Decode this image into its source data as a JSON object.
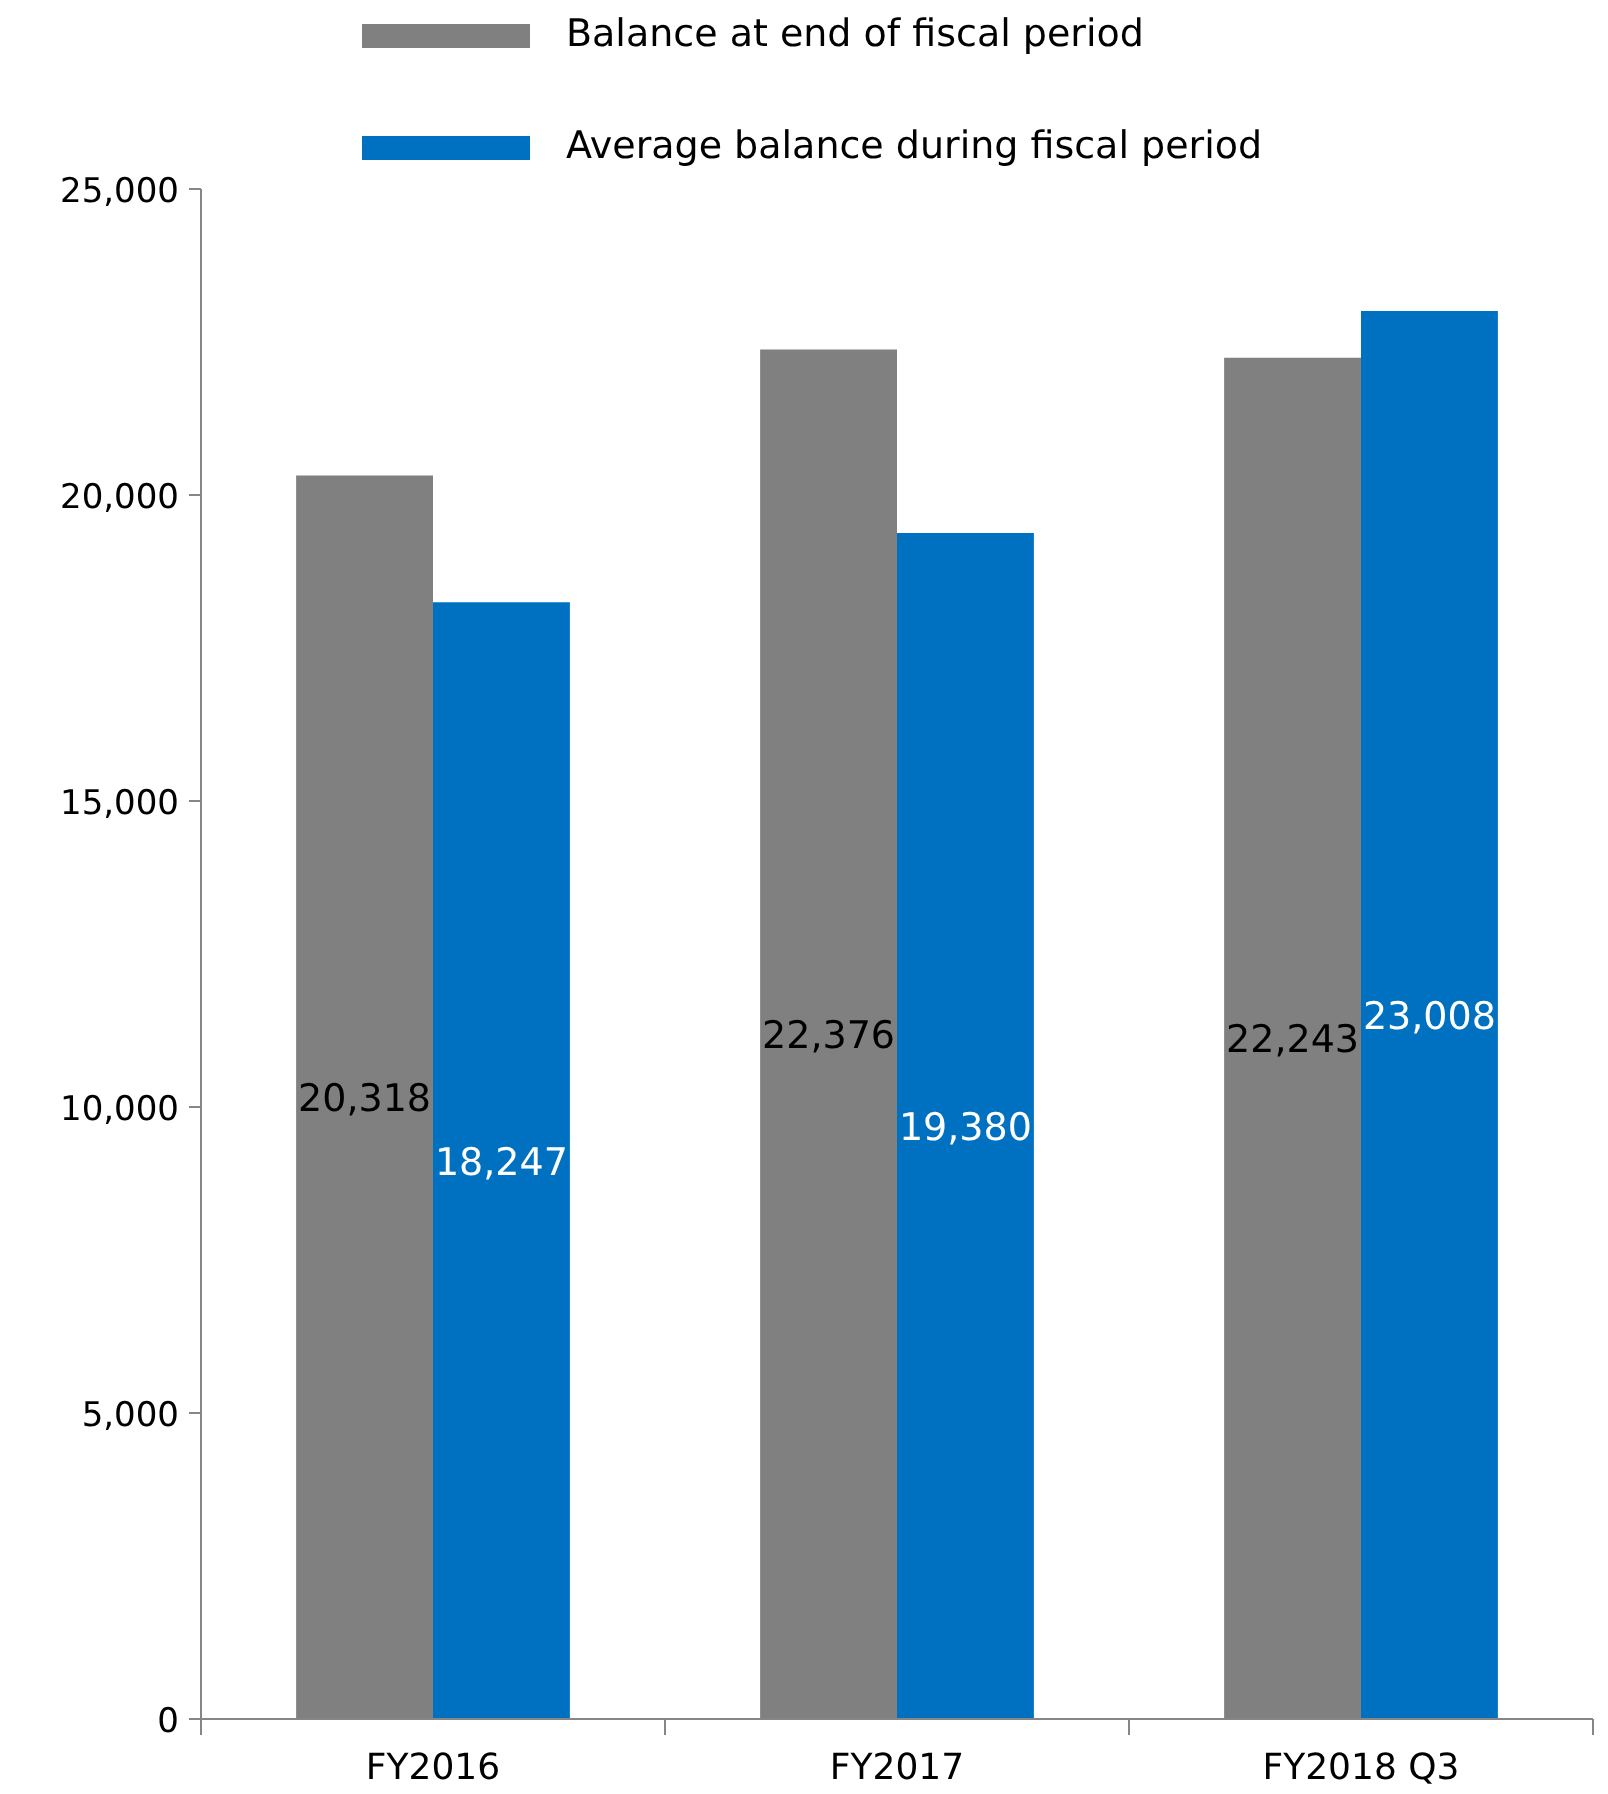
{
  "chart_data": {
    "type": "bar",
    "categories": [
      "FY2016",
      "FY2017",
      "FY2018 Q3"
    ],
    "series": [
      {
        "name": "Balance at end of fiscal period",
        "color": "#808080",
        "values": [
          20318,
          22376,
          22243
        ],
        "value_labels": [
          "20,318",
          "22,376",
          "22,243"
        ]
      },
      {
        "name": "Average balance during fiscal period",
        "color": "#0070c0",
        "values": [
          18247,
          19380,
          23008
        ],
        "value_labels": [
          "18,247",
          "19,380",
          "23,008"
        ]
      }
    ],
    "ylim": [
      0,
      25000
    ],
    "yticks": [
      0,
      {
        "value": 5000,
        "label": "5,000"
      },
      {
        "value": 10000,
        "label": "10,000"
      },
      {
        "value": 15000,
        "label": "15,000"
      },
      {
        "value": 20000,
        "label": "20,000"
      },
      {
        "value": 25000,
        "label": "25,000"
      }
    ],
    "grid": false,
    "legend": "top"
  }
}
